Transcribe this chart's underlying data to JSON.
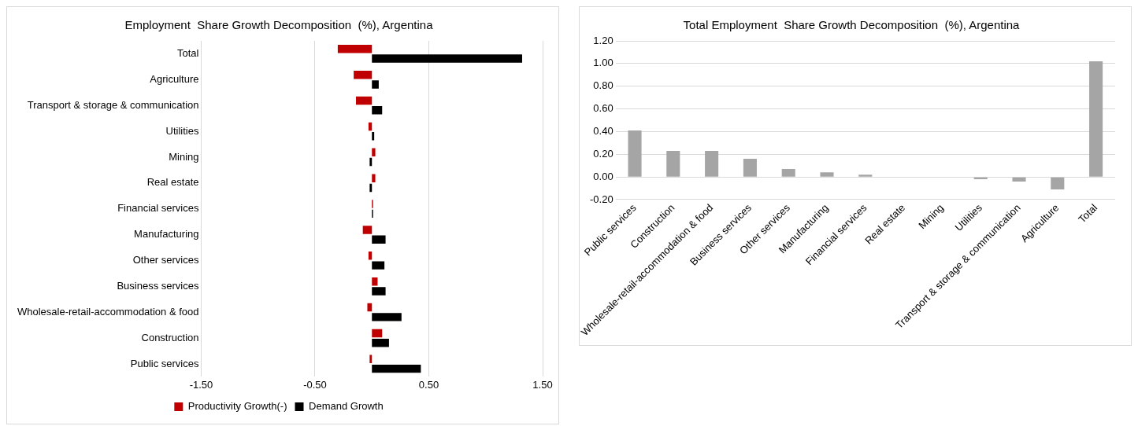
{
  "chart_data": [
    {
      "type": "bar",
      "title": "Employment  Share Growth Decomposition  (%), Argentina",
      "orientation": "horizontal",
      "categories": [
        "Total",
        "Agriculture",
        "Transport & storage & communication",
        "Utilities",
        "Mining",
        "Real estate",
        "Financial services",
        "Manufacturing",
        "Other services",
        "Business services",
        "Wholesale-retail-accommodation & food",
        "Construction",
        "Public services"
      ],
      "series": [
        {
          "name": "Productivity Growth(-)",
          "color": "#c00000",
          "values": [
            -0.3,
            -0.16,
            -0.14,
            -0.03,
            0.03,
            0.03,
            0.01,
            -0.08,
            -0.03,
            0.05,
            -0.04,
            0.09,
            -0.02
          ]
        },
        {
          "name": "Demand Growth",
          "color": "#000000",
          "values": [
            1.32,
            0.06,
            0.09,
            0.02,
            -0.02,
            -0.02,
            0.01,
            0.12,
            0.11,
            0.12,
            0.26,
            0.15,
            0.43
          ]
        }
      ],
      "xlim": [
        -1.5,
        1.5
      ],
      "xticks": [
        {
          "value": -1.5,
          "label": "-1.50"
        },
        {
          "value": -0.5,
          "label": "-0.50"
        },
        {
          "value": 0.5,
          "label": "0.50"
        },
        {
          "value": 1.5,
          "label": "1.50"
        }
      ],
      "grid": "x",
      "legend": "bottom"
    },
    {
      "type": "bar",
      "title": "Total Employment  Share Growth Decomposition  (%), Argentina",
      "categories": [
        "Public services",
        "Construction",
        "Wholesale-retail-accommodation & food",
        "Business services",
        "Other services",
        "Manufacturing",
        "Financial services",
        "Real estate",
        "Mining",
        "Utilities",
        "Transport & storage & communication",
        "Agriculture",
        "Total"
      ],
      "series": [
        {
          "color": "#a5a5a5",
          "values": [
            0.41,
            0.23,
            0.23,
            0.16,
            0.07,
            0.04,
            0.02,
            null,
            null,
            -0.02,
            -0.04,
            -0.11,
            1.02
          ]
        }
      ],
      "ylim": [
        -0.2,
        1.2
      ],
      "yticks": [
        {
          "value": -0.2,
          "label": "-0.20"
        },
        {
          "value": 0,
          "label": "0.00"
        },
        {
          "value": 0.2,
          "label": "0.20"
        },
        {
          "value": 0.4,
          "label": "0.40"
        },
        {
          "value": 0.6,
          "label": "0.60"
        },
        {
          "value": 0.8,
          "label": "0.80"
        },
        {
          "value": 1,
          "label": "1.00"
        },
        {
          "value": 1.2,
          "label": "1.20"
        }
      ],
      "grid": "y",
      "legend": false
    }
  ]
}
